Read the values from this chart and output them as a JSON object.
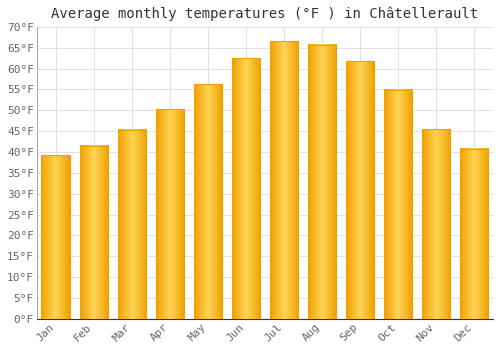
{
  "title": "Average monthly temperatures (°F ) in Châtellerault",
  "months": [
    "Jan",
    "Feb",
    "Mar",
    "Apr",
    "May",
    "Jun",
    "Jul",
    "Aug",
    "Sep",
    "Oct",
    "Nov",
    "Dec"
  ],
  "values": [
    39.2,
    41.5,
    45.3,
    50.2,
    56.3,
    62.4,
    66.6,
    65.7,
    61.7,
    54.9,
    45.5,
    40.8
  ],
  "bar_color_center": "#FFD555",
  "bar_color_edge": "#F0A000",
  "ylim": [
    0,
    70
  ],
  "yticks": [
    0,
    5,
    10,
    15,
    20,
    25,
    30,
    35,
    40,
    45,
    50,
    55,
    60,
    65,
    70
  ],
  "background_color": "#FFFFFF",
  "grid_color": "#DDDDDD",
  "title_fontsize": 10,
  "tick_fontsize": 8,
  "bar_width": 0.75
}
